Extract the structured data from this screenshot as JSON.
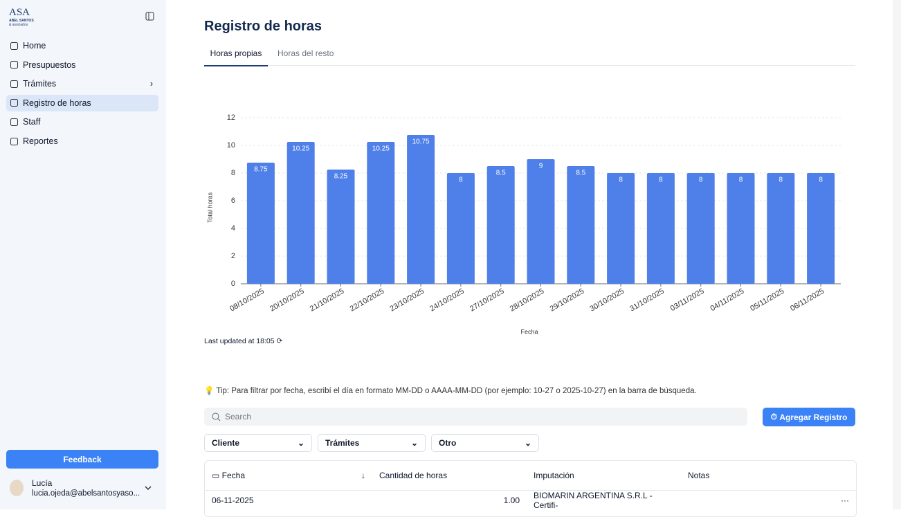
{
  "sidebar": {
    "logo": {
      "letters": "ASA",
      "name": "ABEL SANTOS",
      "tagline": "& asociados"
    },
    "nav": [
      "Home",
      "Presupuestos",
      "Trámites",
      "Registro de horas",
      "Staff",
      "Reportes"
    ],
    "feedback": "Feedback",
    "user": {
      "name": "Lucía",
      "email": "lucia.ojeda@abelsantosyaso..."
    }
  },
  "main": {
    "title": "Registro de horas",
    "tabs": [
      "Horas propias",
      "Horas del resto"
    ],
    "last_updated": "Last updated at 18:05",
    "tip": "Tip: Para filtrar por fecha, escribí el día en formato MM-DD o AAAA-MM-DD (por ejemplo: 10-27 o 2025-10-27) en la barra de búsqueda.",
    "search_placeholder": "Search",
    "add_button": "Agregar Registro",
    "filters": [
      "Cliente",
      "Trámites",
      "Otro"
    ],
    "table": {
      "columns": [
        "Fecha",
        "Cantidad de horas",
        "Imputación",
        "Notas"
      ],
      "rows": [
        {
          "fecha": "06-11-2025",
          "horas": "1.00",
          "imputacion": "BIOMARIN ARGENTINA S.R.L - Certifi-"
        }
      ]
    }
  },
  "chart_data": {
    "type": "bar",
    "x_label": "Fecha",
    "y_label": "Total horas",
    "categories": [
      "08/10/2025",
      "20/10/2025",
      "21/10/2025",
      "22/10/2025",
      "23/10/2025",
      "24/10/2025",
      "27/10/2025",
      "28/10/2025",
      "29/10/2025",
      "30/10/2025",
      "31/10/2025",
      "03/11/2025",
      "04/11/2025",
      "05/11/2025",
      "06/11/2025"
    ],
    "values": [
      8.75,
      10.25,
      8.25,
      10.25,
      10.75,
      8,
      8.5,
      9,
      8.5,
      8,
      8,
      8,
      8,
      8,
      8
    ],
    "color": "#4f7fe8",
    "ylim": [
      0,
      12
    ],
    "yticks": [
      0,
      2,
      4,
      6,
      8,
      10,
      12
    ],
    "grid": true
  }
}
